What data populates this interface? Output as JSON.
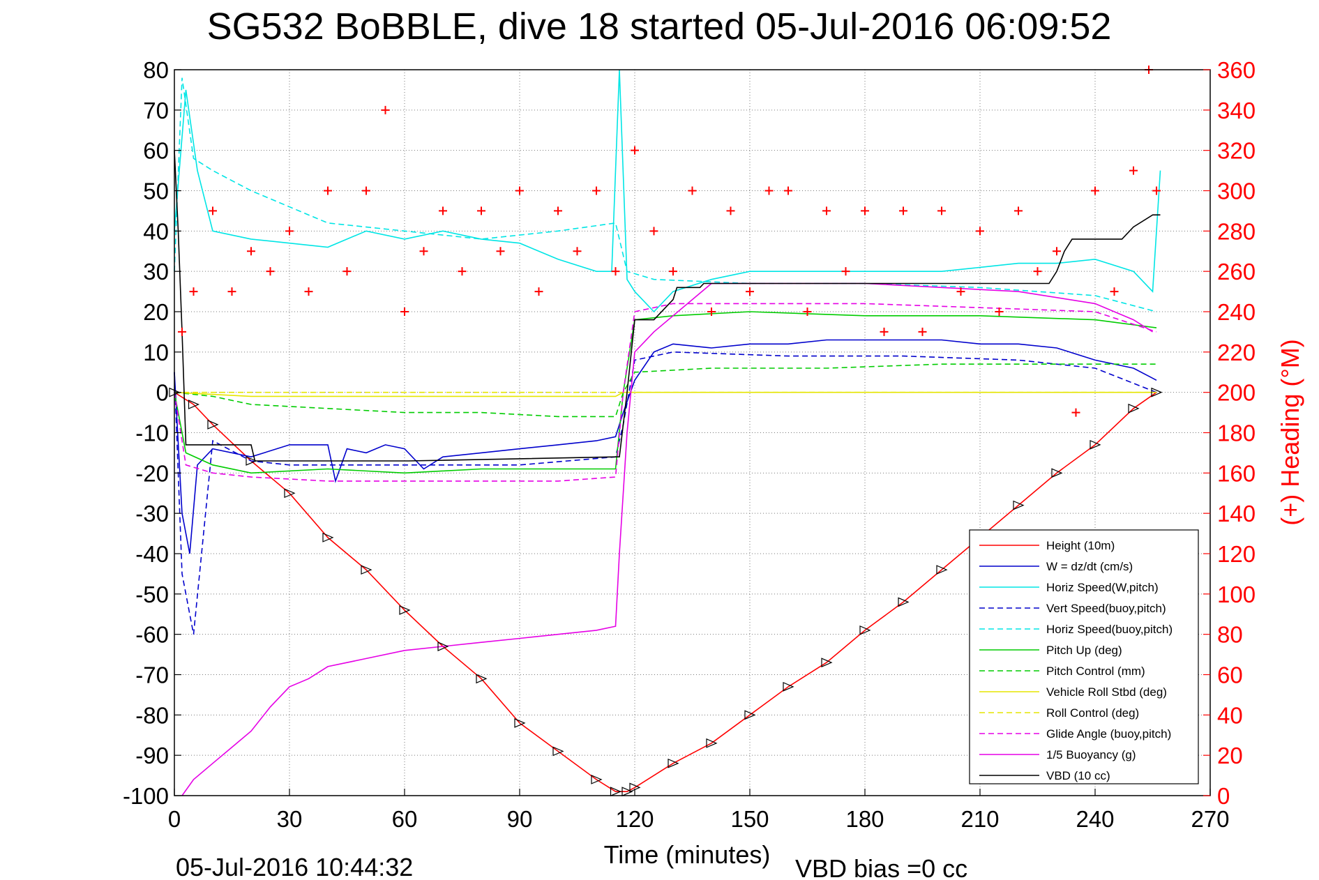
{
  "chart_data": {
    "type": "line",
    "title": "SG532 BoBBLE, dive 18 started 05-Jul-2016 06:09:52",
    "xlabel": "Time (minutes)",
    "ylabel_right": "(+) Heading (°M)",
    "xlim": [
      0,
      270
    ],
    "ylim_left": [
      -100,
      80
    ],
    "ylim_right": [
      0,
      360
    ],
    "x_ticks": [
      "0",
      "30",
      "60",
      "90",
      "120",
      "150",
      "180",
      "210",
      "240",
      "270"
    ],
    "y_ticks_left": [
      "80",
      "70",
      "60",
      "50",
      "40",
      "30",
      "20",
      "10",
      "0",
      "-10",
      "-20",
      "-30",
      "-40",
      "-50",
      "-60",
      "-70",
      "-80",
      "-90",
      "-100"
    ],
    "y_ticks_right": [
      "360",
      "340",
      "320",
      "300",
      "280",
      "260",
      "240",
      "220",
      "200",
      "180",
      "160",
      "140",
      "120",
      "100",
      "80",
      "60",
      "40",
      "20",
      "0"
    ],
    "grid": true,
    "legend_position": "bottom-right",
    "colors": {
      "right_axis": "#ff0000",
      "heading_marker": "#ff0000"
    },
    "series": [
      {
        "name": "Height (10m)",
        "color": "#ff0000",
        "style": "solid",
        "x": [
          0,
          5,
          10,
          20,
          30,
          40,
          50,
          60,
          70,
          80,
          90,
          100,
          110,
          115,
          118,
          120,
          130,
          140,
          150,
          160,
          170,
          180,
          190,
          200,
          210,
          220,
          230,
          240,
          250,
          256
        ],
        "y": [
          0,
          -3,
          -8,
          -17,
          -25,
          -36,
          -44,
          -54,
          -63,
          -71,
          -82,
          -89,
          -96,
          -99,
          -99,
          -98,
          -92,
          -87,
          -80,
          -73,
          -67,
          -59,
          -52,
          -44,
          -36,
          -28,
          -20,
          -13,
          -4,
          0
        ]
      },
      {
        "name": "W = dz/dt (cm/s)",
        "color": "#0000cc",
        "style": "solid",
        "x": [
          0,
          2,
          4,
          6,
          10,
          20,
          30,
          40,
          42,
          45,
          50,
          55,
          60,
          65,
          70,
          80,
          90,
          100,
          110,
          115,
          117,
          120,
          125,
          130,
          140,
          150,
          160,
          170,
          180,
          190,
          200,
          210,
          220,
          230,
          240,
          250,
          256
        ],
        "y": [
          5,
          -30,
          -40,
          -18,
          -14,
          -16,
          -13,
          -13,
          -22,
          -14,
          -15,
          -13,
          -14,
          -19,
          -16,
          -15,
          -14,
          -13,
          -12,
          -11,
          -5,
          3,
          10,
          12,
          11,
          12,
          12,
          13,
          13,
          13,
          13,
          12,
          12,
          11,
          8,
          6,
          3
        ]
      },
      {
        "name": "Horiz Speed(W,pitch)",
        "color": "#00e5e5",
        "style": "solid",
        "x": [
          0,
          3,
          6,
          10,
          20,
          30,
          40,
          50,
          60,
          70,
          80,
          90,
          100,
          110,
          114,
          116,
          118,
          120,
          125,
          130,
          140,
          150,
          160,
          170,
          180,
          190,
          200,
          210,
          220,
          230,
          240,
          250,
          255,
          257
        ],
        "y": [
          40,
          75,
          55,
          40,
          38,
          37,
          36,
          40,
          38,
          40,
          38,
          37,
          33,
          30,
          30,
          80,
          28,
          25,
          20,
          25,
          28,
          30,
          30,
          30,
          30,
          30,
          30,
          31,
          32,
          32,
          33,
          30,
          25,
          55
        ]
      },
      {
        "name": "Vert Speed(buoy,pitch)",
        "color": "#0000cc",
        "style": "dashed",
        "x": [
          0,
          2,
          5,
          10,
          20,
          30,
          60,
          90,
          115,
          117,
          120,
          130,
          160,
          190,
          220,
          240,
          256
        ],
        "y": [
          5,
          -45,
          -60,
          -12,
          -17,
          -18,
          -18,
          -18,
          -16,
          -8,
          8,
          10,
          9,
          9,
          8,
          6,
          0
        ]
      },
      {
        "name": "Horiz Speed(buoy,pitch)",
        "color": "#00e5e5",
        "style": "dashed",
        "x": [
          0,
          2,
          5,
          10,
          20,
          40,
          60,
          80,
          100,
          115,
          118,
          125,
          150,
          180,
          210,
          240,
          256
        ],
        "y": [
          30,
          78,
          58,
          55,
          50,
          42,
          40,
          38,
          40,
          42,
          30,
          28,
          27,
          27,
          26,
          24,
          20
        ]
      },
      {
        "name": "Pitch Up (deg)",
        "color": "#00cc00",
        "style": "solid",
        "x": [
          0,
          3,
          10,
          20,
          40,
          60,
          80,
          100,
          115,
          117,
          120,
          130,
          150,
          180,
          210,
          240,
          256
        ],
        "y": [
          0,
          -15,
          -18,
          -20,
          -19,
          -20,
          -19,
          -19,
          -19,
          0,
          18,
          19,
          20,
          19,
          19,
          18,
          16
        ]
      },
      {
        "name": "Pitch Control (mm)",
        "color": "#00cc00",
        "style": "dashed",
        "x": [
          0,
          10,
          20,
          40,
          60,
          80,
          100,
          115,
          117,
          120,
          140,
          170,
          200,
          230,
          256
        ],
        "y": [
          0,
          -1,
          -3,
          -4,
          -5,
          -5,
          -6,
          -6,
          0,
          5,
          6,
          6,
          7,
          7,
          7
        ]
      },
      {
        "name": "Vehicle Roll Stbd (deg)",
        "color": "#e5e500",
        "style": "solid",
        "x": [
          0,
          20,
          40,
          60,
          80,
          100,
          115,
          117,
          120,
          140,
          160,
          180,
          200,
          220,
          240,
          256
        ],
        "y": [
          0,
          -1,
          -1,
          -1,
          -1,
          -1,
          -1,
          0,
          0,
          0,
          0,
          0,
          0,
          0,
          0,
          0
        ]
      },
      {
        "name": "Roll Control (deg)",
        "color": "#e5e500",
        "style": "dashed",
        "x": [
          0,
          30,
          60,
          90,
          115,
          120,
          150,
          180,
          210,
          240,
          256
        ],
        "y": [
          0,
          0,
          0,
          0,
          0,
          0,
          0,
          0,
          0,
          0,
          0
        ]
      },
      {
        "name": "Glide Angle (buoy,pitch)",
        "color": "#e500e5",
        "style": "dashed",
        "x": [
          0,
          3,
          10,
          20,
          40,
          60,
          80,
          100,
          115,
          117,
          120,
          130,
          150,
          180,
          210,
          240,
          256
        ],
        "y": [
          0,
          -18,
          -20,
          -21,
          -22,
          -22,
          -22,
          -22,
          -21,
          0,
          20,
          22,
          22,
          22,
          21,
          20,
          15
        ]
      },
      {
        "name": "1/5 Buoyancy (g)",
        "color": "#e500e5",
        "style": "solid",
        "x": [
          2,
          5,
          10,
          15,
          20,
          25,
          30,
          35,
          40,
          50,
          60,
          70,
          80,
          90,
          100,
          110,
          115,
          116,
          118,
          120,
          125,
          140,
          160,
          180,
          200,
          220,
          240,
          250,
          255
        ],
        "y": [
          -100,
          -96,
          -92,
          -88,
          -84,
          -78,
          -73,
          -71,
          -68,
          -66,
          -64,
          -63,
          -62,
          -61,
          -60,
          -59,
          -58,
          -40,
          -10,
          10,
          15,
          27,
          27,
          27,
          26,
          25,
          22,
          18,
          15
        ]
      },
      {
        "name": "VBD (10 cc)",
        "color": "#000000",
        "style": "solid",
        "x": [
          0,
          1,
          2,
          3,
          20,
          21,
          60,
          61,
          115,
          116,
          118,
          120,
          125,
          130,
          131,
          137,
          138,
          180,
          228,
          230,
          232,
          234,
          247,
          250,
          255,
          257
        ],
        "y": [
          60,
          40,
          15,
          -13,
          -13,
          -17,
          -17,
          -17,
          -16,
          -16,
          0,
          18,
          18,
          23,
          26,
          26,
          27,
          27,
          27,
          30,
          35,
          38,
          38,
          41,
          44,
          44
        ]
      }
    ],
    "heading_series": {
      "name": "(+) Heading (°M)",
      "axis": "right",
      "marker": "+",
      "color": "#ff0000",
      "x": [
        2,
        5,
        10,
        15,
        20,
        25,
        30,
        35,
        40,
        45,
        50,
        55,
        60,
        65,
        70,
        75,
        80,
        85,
        90,
        95,
        100,
        105,
        110,
        115,
        120,
        125,
        130,
        135,
        140,
        145,
        150,
        155,
        160,
        165,
        170,
        175,
        180,
        185,
        190,
        195,
        200,
        205,
        210,
        215,
        220,
        225,
        230,
        235,
        240,
        245,
        250,
        254,
        256
      ],
      "y": [
        230,
        250,
        290,
        250,
        270,
        260,
        280,
        250,
        300,
        260,
        300,
        340,
        240,
        270,
        290,
        260,
        290,
        270,
        300,
        250,
        290,
        270,
        300,
        260,
        320,
        280,
        260,
        300,
        240,
        290,
        250,
        300,
        300,
        240,
        290,
        260,
        290,
        230,
        290,
        230,
        290,
        250,
        280,
        240,
        290,
        260,
        270,
        190,
        300,
        250,
        310,
        360,
        300
      ]
    },
    "footer": {
      "timestamp": "05-Jul-2016 10:44:32",
      "vbd_bias": "VBD bias =0 cc"
    }
  }
}
